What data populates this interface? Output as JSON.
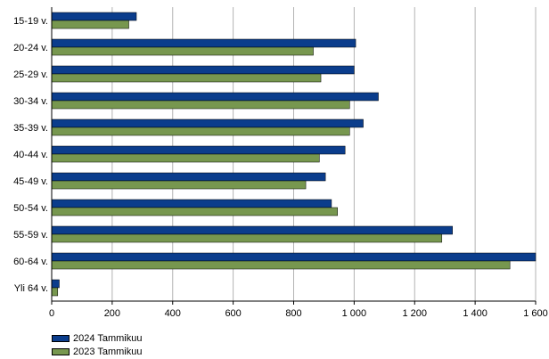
{
  "chart_data": {
    "type": "bar",
    "orientation": "horizontal",
    "categories": [
      "15-19 v.",
      "20-24 v.",
      "25-29 v.",
      "30-34 v.",
      "35-39 v.",
      "40-44 v.",
      "45-49 v.",
      "50-54 v.",
      "55-59 v.",
      "60-64 v.",
      "Yli 64 v."
    ],
    "series": [
      {
        "name": "2024 Tammikuu",
        "color": "#0b3d8c",
        "values": [
          280,
          1005,
          1000,
          1080,
          1030,
          970,
          905,
          925,
          1325,
          1600,
          25
        ]
      },
      {
        "name": "2023 Tammikuu",
        "color": "#77974f",
        "values": [
          255,
          865,
          890,
          985,
          985,
          885,
          840,
          945,
          1290,
          1515,
          20
        ]
      }
    ],
    "xlim": [
      0,
      1600
    ],
    "xticks": [
      0,
      200,
      400,
      600,
      800,
      1000,
      1200,
      1400,
      1600
    ],
    "xtick_labels": [
      "0",
      "200",
      "400",
      "600",
      "800",
      "1 000",
      "1 200",
      "1 400",
      "1 600"
    ],
    "grid": "vertical",
    "legend": "bottom-left"
  }
}
